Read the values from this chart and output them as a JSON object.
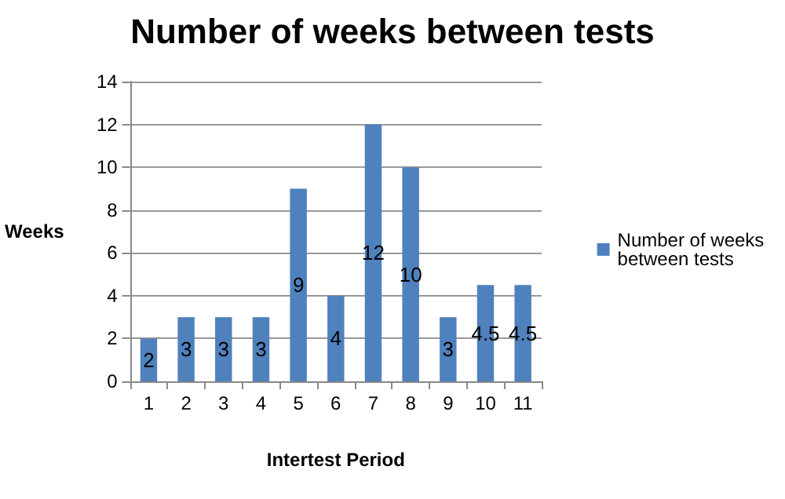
{
  "chart_data": {
    "type": "bar",
    "title": "Number of weeks between tests",
    "xlabel": "Intertest Period",
    "ylabel": "Weeks",
    "categories": [
      "1",
      "2",
      "3",
      "4",
      "5",
      "6",
      "7",
      "8",
      "9",
      "10",
      "11"
    ],
    "series": [
      {
        "name": "Number of weeks between tests",
        "color": "#4f81bd",
        "values": [
          2,
          3,
          3,
          3,
          9,
          4,
          12,
          10,
          3,
          4.5,
          4.5
        ]
      }
    ],
    "ylim": [
      0,
      14
    ],
    "yticks": [
      0,
      2,
      4,
      6,
      8,
      10,
      12,
      14
    ],
    "grid": "y",
    "legend": "right",
    "data_labels": true
  }
}
